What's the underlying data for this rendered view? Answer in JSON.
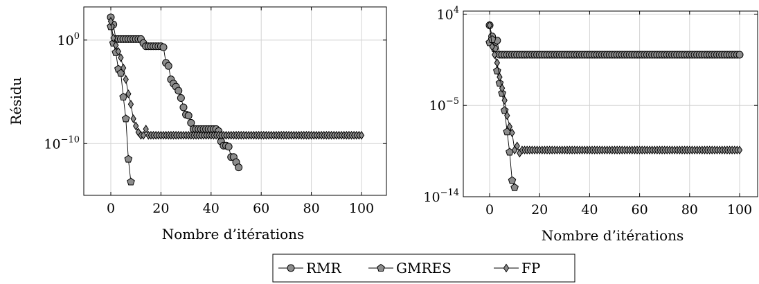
{
  "chart_data": [
    {
      "type": "line",
      "xlabel": "Nombre d’itérations",
      "ylabel": "Résidu",
      "yscale": "log",
      "xlim": [
        -10,
        110
      ],
      "ylim_exponent": [
        -15,
        3.2
      ],
      "xticks": [
        "0",
        "20",
        "40",
        "60",
        "80",
        "100"
      ],
      "yticks": [
        {
          "base": "10",
          "exp": "0",
          "value": 0
        },
        {
          "base": "10",
          "exp": "−10",
          "value": -10
        }
      ],
      "grid": true,
      "series": [
        {
          "name": "RMR",
          "marker": "circle",
          "x": [
            0,
            1,
            2,
            3,
            4,
            5,
            6,
            7,
            8,
            9,
            10,
            11,
            12,
            13,
            14,
            15,
            16,
            17,
            18,
            19,
            20,
            21,
            22,
            23,
            24,
            25,
            26,
            27,
            28,
            29,
            30,
            31,
            32,
            33,
            34,
            35,
            36,
            37,
            38,
            39,
            40,
            41,
            42,
            43,
            44,
            45,
            46,
            47,
            48,
            49,
            50,
            51
          ],
          "log10_y": [
            2.2,
            1.5,
            0.1,
            0.1,
            0.1,
            0.1,
            0.1,
            0.1,
            0.1,
            0.1,
            0.1,
            0.1,
            0.1,
            -0.3,
            -0.6,
            -0.6,
            -0.6,
            -0.6,
            -0.6,
            -0.6,
            -0.6,
            -0.7,
            -2.2,
            -2.5,
            -3.8,
            -4.2,
            -4.5,
            -4.9,
            -5.6,
            -6.5,
            -7.2,
            -7.3,
            -8.0,
            -8.6,
            -8.6,
            -8.6,
            -8.6,
            -8.6,
            -8.6,
            -8.6,
            -8.6,
            -8.6,
            -8.6,
            -8.8,
            -9.8,
            -10.2,
            -10.2,
            -10.3,
            -11.3,
            -11.3,
            -11.8,
            -12.3
          ]
        },
        {
          "name": "GMRES",
          "marker": "pentagon",
          "x": [
            0,
            1,
            2,
            3,
            4,
            5,
            6,
            7,
            8
          ],
          "log10_y": [
            1.3,
            -0.3,
            -1.2,
            -2.8,
            -3.2,
            -5.5,
            -7.6,
            -11.5,
            -13.7
          ]
        },
        {
          "name": "FP",
          "marker": "diamond",
          "x": [
            0,
            1,
            2,
            3,
            4,
            5,
            6,
            7,
            8,
            9,
            10,
            11,
            12,
            13,
            14,
            15,
            16,
            17,
            18,
            19,
            20,
            21,
            22,
            23,
            24,
            25,
            26,
            27,
            28,
            29,
            30,
            31,
            32,
            33,
            34,
            35,
            36,
            37,
            38,
            39,
            40,
            41,
            42,
            43,
            44,
            45,
            46,
            47,
            48,
            49,
            50,
            51,
            52,
            53,
            54,
            55,
            56,
            57,
            58,
            59,
            60,
            61,
            62,
            63,
            64,
            65,
            66,
            67,
            68,
            69,
            70,
            71,
            72,
            73,
            74,
            75,
            76,
            77,
            78,
            79,
            80,
            81,
            82,
            83,
            84,
            85,
            86,
            87,
            88,
            89,
            90,
            91,
            92,
            93,
            94,
            95,
            96,
            97,
            98,
            99,
            100
          ],
          "log10_y": [
            1.8,
            0.2,
            -0.5,
            -1.1,
            -1.7,
            -2.7,
            -3.8,
            -5.2,
            -6.2,
            -7.6,
            -8.3,
            -8.9,
            -9.2,
            -9.2,
            -8.6,
            -9.2,
            -9.2,
            -9.2,
            -9.2,
            -9.2,
            -9.2,
            -9.2,
            -9.2,
            -9.2,
            -9.2,
            -9.2,
            -9.2,
            -9.2,
            -9.2,
            -9.2,
            -9.2,
            -9.2,
            -9.2,
            -9.2,
            -9.2,
            -9.2,
            -9.2,
            -9.2,
            -9.2,
            -9.2,
            -9.2,
            -9.2,
            -9.2,
            -9.2,
            -9.2,
            -9.2,
            -9.2,
            -9.2,
            -9.2,
            -9.2,
            -9.2,
            -9.2,
            -9.2,
            -9.2,
            -9.2,
            -9.2,
            -9.2,
            -9.2,
            -9.2,
            -9.2,
            -9.2,
            -9.2,
            -9.2,
            -9.2,
            -9.2,
            -9.2,
            -9.2,
            -9.2,
            -9.2,
            -9.2,
            -9.2,
            -9.2,
            -9.2,
            -9.2,
            -9.2,
            -9.2,
            -9.2,
            -9.2,
            -9.2,
            -9.2,
            -9.2,
            -9.2,
            -9.2,
            -9.2,
            -9.2,
            -9.2,
            -9.2,
            -9.2,
            -9.2,
            -9.2,
            -9.2,
            -9.2,
            -9.2,
            -9.2,
            -9.2,
            -9.2,
            -9.2,
            -9.2,
            -9.2,
            -9.2,
            -9.2
          ]
        }
      ]
    },
    {
      "type": "line",
      "xlabel": "Nombre d’itérations",
      "ylabel": "",
      "yscale": "log",
      "xlim": [
        -10,
        110
      ],
      "ylim_exponent": [
        -14,
        4.3
      ],
      "xticks": [
        "0",
        "20",
        "40",
        "60",
        "80",
        "100"
      ],
      "yticks": [
        {
          "base": "10",
          "exp": "4",
          "value": 4
        },
        {
          "base": "10",
          "exp": "−5",
          "value": -5
        },
        {
          "base": "10",
          "exp": "−14",
          "value": -14
        }
      ],
      "grid": true,
      "series": [
        {
          "name": "RMR",
          "marker": "circle",
          "x_range": [
            0,
            100
          ],
          "log10_y_first": [
            2.9,
            1.8,
            1.2,
            1.4,
            0.0
          ],
          "log10_y_rest": 0.0
        },
        {
          "name": "GMRES",
          "marker": "pentagon",
          "x": [
            0,
            1,
            2,
            3,
            4,
            5,
            6,
            7,
            8,
            9,
            10
          ],
          "log10_y": [
            1.2,
            1.5,
            0.6,
            -1.6,
            -2.8,
            -3.8,
            -5.5,
            -7.6,
            -9.6,
            -12.4,
            -13.1
          ]
        },
        {
          "name": "FP",
          "marker": "diamond",
          "x_range": [
            0,
            100
          ],
          "log10_y_first": [
            2.9,
            0.8,
            0.0,
            -0.8,
            -2.2,
            -3.3,
            -4.5,
            -6.0,
            -7.1,
            -7.7,
            -9.4,
            -9.0,
            -9.7
          ],
          "log10_y_rest": -9.4
        }
      ]
    }
  ],
  "legend": {
    "placement": "bottom-center",
    "entries": [
      {
        "label": "RMR",
        "marker": "circle"
      },
      {
        "label": "GMRES",
        "marker": "pentagon"
      },
      {
        "label": "FP",
        "marker": "diamond"
      }
    ]
  },
  "colors": {
    "marker_fill": "#8c8c8c",
    "grid": "#d3d3d3",
    "line": "#000000"
  }
}
